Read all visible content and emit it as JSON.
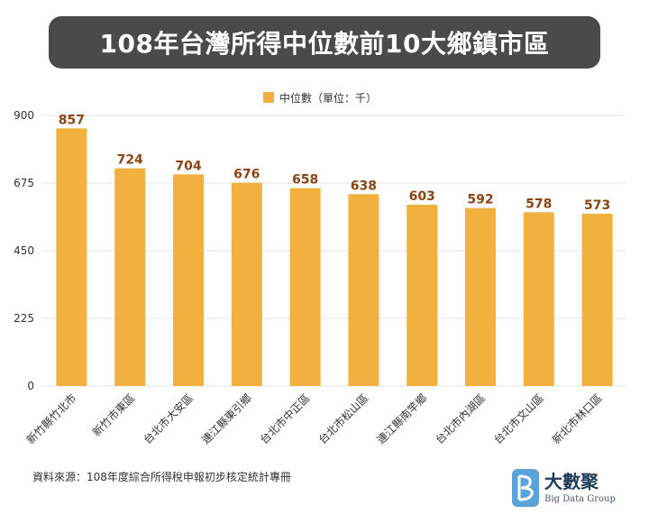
{
  "title": "108年台灣所得中位數前10大鄉鎮市區",
  "chart_data": {
    "type": "bar",
    "legend": "中位數（單位：千）",
    "legend_position": "top-center",
    "categories": [
      "新竹縣竹北市",
      "新竹市東區",
      "台北市大安區",
      "連江縣東引鄉",
      "台北市中正區",
      "台北市松山區",
      "連江縣南竿鄉",
      "台北市內湖區",
      "台北市文山區",
      "新北市林口區"
    ],
    "series": [
      {
        "name": "中位數（單位：千）",
        "values": [
          857,
          724,
          704,
          676,
          658,
          638,
          603,
          592,
          578,
          573
        ]
      }
    ],
    "ylim": [
      0,
      900
    ],
    "yticks": [
      0,
      225,
      450,
      675,
      900
    ],
    "grid": true,
    "bar_color": "#F2B03E",
    "label_color": "#8B4513"
  },
  "footer": {
    "source": "資料來源：108年度綜合所得稅申報初步核定統計專冊"
  },
  "logo": {
    "name": "大數聚",
    "subtitle": "Big Data Group",
    "icon": "b-letter-logo-icon"
  }
}
